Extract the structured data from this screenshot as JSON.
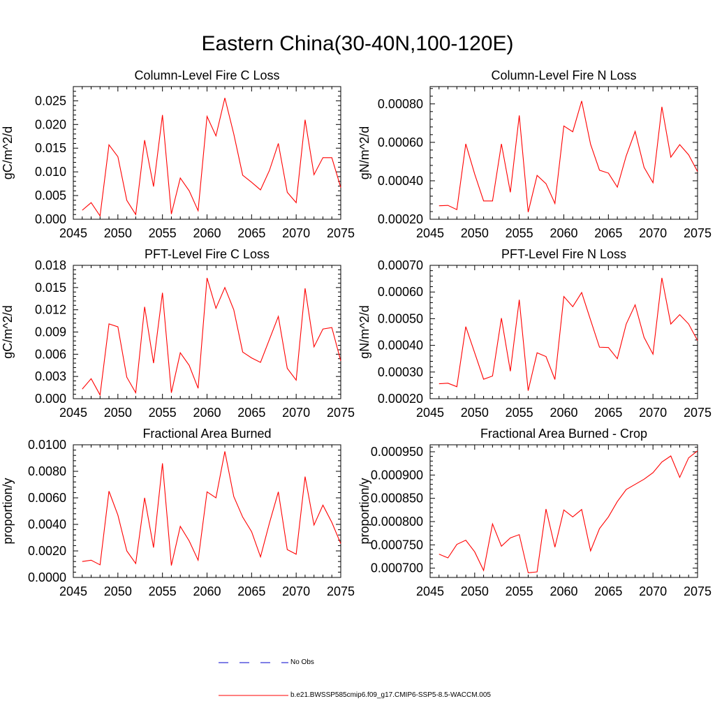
{
  "title": "Eastern China(30-40N,100-120E)",
  "colors": {
    "model": "#ff0000",
    "obs": "#0000cc",
    "axis": "#000000"
  },
  "legend": {
    "obs_label": "No Obs",
    "model_label": "b.e21.BWSSP585cmip6.f09_g17.CMIP6-SSP5-8.5-WACCM.005"
  },
  "chart_data": [
    {
      "type": "line",
      "title": "Column-Level Fire C Loss",
      "ylabel": "gC/m^2/d",
      "xlabel": "",
      "xlim": [
        2045,
        2075
      ],
      "x_ticks": [
        2045,
        2050,
        2055,
        2060,
        2065,
        2070,
        2075
      ],
      "ylim": [
        0,
        0.028
      ],
      "y_ticks": [
        "0.000",
        "0.005",
        "0.010",
        "0.015",
        "0.020",
        "0.025"
      ],
      "x": [
        2046,
        2047,
        2048,
        2049,
        2050,
        2051,
        2052,
        2053,
        2054,
        2055,
        2056,
        2057,
        2058,
        2059,
        2060,
        2061,
        2062,
        2063,
        2064,
        2065,
        2066,
        2067,
        2068,
        2069,
        2070,
        2071,
        2072,
        2073,
        2074,
        2075
      ],
      "series": [
        {
          "name": "b.e21.BWSSP585cmip6.f09_g17.CMIP6-SSP5-8.5-WACCM.005",
          "values": [
            0.0019,
            0.0035,
            0.0007,
            0.0157,
            0.0132,
            0.004,
            0.001,
            0.0167,
            0.0069,
            0.022,
            0.0011,
            0.0087,
            0.006,
            0.0018,
            0.0217,
            0.0176,
            0.0256,
            0.018,
            0.0093,
            0.0078,
            0.0062,
            0.0103,
            0.016,
            0.0057,
            0.0035,
            0.021,
            0.0094,
            0.013,
            0.013,
            0.0067
          ]
        }
      ]
    },
    {
      "type": "line",
      "title": "Column-Level Fire N Loss",
      "ylabel": "gN/m^2/d",
      "xlabel": "",
      "xlim": [
        2045,
        2075
      ],
      "x_ticks": [
        2045,
        2050,
        2055,
        2060,
        2065,
        2070,
        2075
      ],
      "ylim": [
        0.0002,
        0.00089
      ],
      "y_ticks": [
        "0.00020",
        "0.00040",
        "0.00060",
        "0.00080"
      ],
      "x": [
        2046,
        2047,
        2048,
        2049,
        2050,
        2051,
        2052,
        2053,
        2054,
        2055,
        2056,
        2057,
        2058,
        2059,
        2060,
        2061,
        2062,
        2063,
        2064,
        2065,
        2066,
        2067,
        2068,
        2069,
        2070,
        2071,
        2072,
        2073,
        2074,
        2075
      ],
      "series": [
        {
          "name": "b.e21.BWSSP585cmip6.f09_g17.CMIP6-SSP5-8.5-WACCM.005",
          "values": [
            0.00027,
            0.000272,
            0.00025,
            0.000592,
            0.000435,
            0.000295,
            0.000295,
            0.000592,
            0.00034,
            0.00074,
            0.000237,
            0.000428,
            0.000385,
            0.000282,
            0.000685,
            0.000655,
            0.000815,
            0.00059,
            0.000455,
            0.00044,
            0.000367,
            0.00053,
            0.000657,
            0.00047,
            0.00039,
            0.000785,
            0.000523,
            0.000588,
            0.000535,
            0.000448
          ]
        }
      ]
    },
    {
      "type": "line",
      "title": "PFT-Level Fire C Loss",
      "ylabel": "gC/m^2/d",
      "xlabel": "",
      "xlim": [
        2045,
        2075
      ],
      "x_ticks": [
        2045,
        2050,
        2055,
        2060,
        2065,
        2070,
        2075
      ],
      "ylim": [
        0,
        0.018
      ],
      "y_ticks": [
        "0.000",
        "0.003",
        "0.006",
        "0.009",
        "0.012",
        "0.015",
        "0.018"
      ],
      "x": [
        2046,
        2047,
        2048,
        2049,
        2050,
        2051,
        2052,
        2053,
        2054,
        2055,
        2056,
        2057,
        2058,
        2059,
        2060,
        2061,
        2062,
        2063,
        2064,
        2065,
        2066,
        2067,
        2068,
        2069,
        2070,
        2071,
        2072,
        2073,
        2074,
        2075
      ],
      "series": [
        {
          "name": "b.e21.BWSSP585cmip6.f09_g17.CMIP6-SSP5-8.5-WACCM.005",
          "values": [
            0.0013,
            0.0027,
            0.0005,
            0.0101,
            0.0097,
            0.0029,
            0.0008,
            0.0124,
            0.0048,
            0.0143,
            0.0008,
            0.0062,
            0.0045,
            0.0014,
            0.0163,
            0.0122,
            0.015,
            0.012,
            0.0063,
            0.0055,
            0.0049,
            0.008,
            0.0111,
            0.0041,
            0.0025,
            0.0149,
            0.007,
            0.0094,
            0.0096,
            0.0051
          ]
        }
      ]
    },
    {
      "type": "line",
      "title": "PFT-Level Fire N Loss",
      "ylabel": "gN/m^2/d",
      "xlabel": "",
      "xlim": [
        2045,
        2075
      ],
      "x_ticks": [
        2045,
        2050,
        2055,
        2060,
        2065,
        2070,
        2075
      ],
      "ylim": [
        0.0002,
        0.0007
      ],
      "y_ticks": [
        "0.00020",
        "0.00030",
        "0.00040",
        "0.00050",
        "0.00060",
        "0.00070"
      ],
      "x": [
        2046,
        2047,
        2048,
        2049,
        2050,
        2051,
        2052,
        2053,
        2054,
        2055,
        2056,
        2057,
        2058,
        2059,
        2060,
        2061,
        2062,
        2063,
        2064,
        2065,
        2066,
        2067,
        2068,
        2069,
        2070,
        2071,
        2072,
        2073,
        2074,
        2075
      ],
      "series": [
        {
          "name": "b.e21.BWSSP585cmip6.f09_g17.CMIP6-SSP5-8.5-WACCM.005",
          "values": [
            0.000256,
            0.000258,
            0.000245,
            0.00047,
            0.000372,
            0.000273,
            0.000285,
            0.000502,
            0.000303,
            0.000571,
            0.00023,
            0.000372,
            0.000358,
            0.000272,
            0.000583,
            0.000545,
            0.000598,
            0.000495,
            0.000393,
            0.000392,
            0.00035,
            0.00048,
            0.000552,
            0.00043,
            0.000367,
            0.000653,
            0.00048,
            0.000515,
            0.00048,
            0.000418
          ]
        }
      ]
    },
    {
      "type": "line",
      "title": "Fractional Area Burned",
      "ylabel": "proportion/y",
      "xlabel": "",
      "xlim": [
        2045,
        2075
      ],
      "x_ticks": [
        2045,
        2050,
        2055,
        2060,
        2065,
        2070,
        2075
      ],
      "ylim": [
        0,
        0.01
      ],
      "y_ticks": [
        "0.0000",
        "0.0020",
        "0.0040",
        "0.0060",
        "0.0080",
        "0.0100"
      ],
      "x": [
        2046,
        2047,
        2048,
        2049,
        2050,
        2051,
        2052,
        2053,
        2054,
        2055,
        2056,
        2057,
        2058,
        2059,
        2060,
        2061,
        2062,
        2063,
        2064,
        2065,
        2066,
        2067,
        2068,
        2069,
        2070,
        2071,
        2072,
        2073,
        2074,
        2075
      ],
      "series": [
        {
          "name": "b.e21.BWSSP585cmip6.f09_g17.CMIP6-SSP5-8.5-WACCM.005",
          "values": [
            0.0012,
            0.0013,
            0.00095,
            0.0065,
            0.0047,
            0.002,
            0.00105,
            0.006,
            0.00225,
            0.0086,
            0.0009,
            0.00385,
            0.00275,
            0.0013,
            0.00645,
            0.006,
            0.0095,
            0.0061,
            0.00455,
            0.00345,
            0.00155,
            0.0041,
            0.00645,
            0.0021,
            0.00175,
            0.0076,
            0.00395,
            0.00545,
            0.00415,
            0.00255
          ]
        }
      ]
    },
    {
      "type": "line",
      "title": "Fractional Area Burned - Crop",
      "ylabel": "proportion/y",
      "xlabel": "",
      "xlim": [
        2045,
        2075
      ],
      "x_ticks": [
        2045,
        2050,
        2055,
        2060,
        2065,
        2070,
        2075
      ],
      "ylim": [
        0.00068,
        0.000965
      ],
      "y_ticks": [
        "0.000700",
        "0.000750",
        "0.000800",
        "0.000850",
        "0.000900",
        "0.000950"
      ],
      "x": [
        2046,
        2047,
        2048,
        2049,
        2050,
        2051,
        2052,
        2053,
        2054,
        2055,
        2056,
        2057,
        2058,
        2059,
        2060,
        2061,
        2062,
        2063,
        2064,
        2065,
        2066,
        2067,
        2068,
        2069,
        2070,
        2071,
        2072,
        2073,
        2074,
        2075
      ],
      "series": [
        {
          "name": "b.e21.BWSSP585cmip6.f09_g17.CMIP6-SSP5-8.5-WACCM.005",
          "values": [
            0.00073,
            0.000722,
            0.000751,
            0.00076,
            0.000735,
            0.000695,
            0.000795,
            0.000747,
            0.000765,
            0.000772,
            0.00069,
            0.000692,
            0.000827,
            0.000745,
            0.000825,
            0.00081,
            0.000826,
            0.000737,
            0.000785,
            0.00081,
            0.000843,
            0.000869,
            0.00088,
            0.000891,
            0.000905,
            0.000928,
            0.000941,
            0.000895,
            0.000937,
            0.000952
          ]
        }
      ]
    }
  ]
}
